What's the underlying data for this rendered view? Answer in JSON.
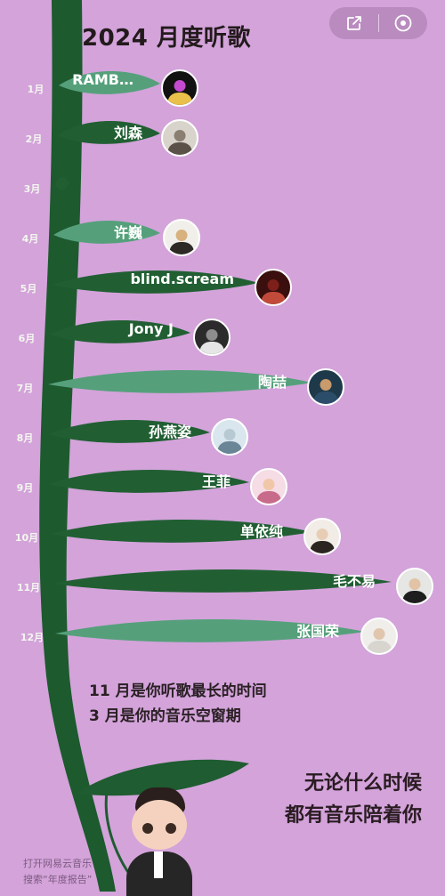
{
  "page": {
    "title": "2024 月度听歌",
    "share_icon": "share-icon",
    "record_icon": "record-icon"
  },
  "timeline": [
    {
      "month": "1月",
      "artist": "RAMB…",
      "avatar_colors": [
        "#111111",
        "#c44ad0",
        "#e9c04a"
      ]
    },
    {
      "month": "2月",
      "artist": "刘森",
      "avatar_colors": [
        "#d8d4cc",
        "#8a7f70",
        "#5b5148"
      ]
    },
    {
      "month": "3月",
      "artist": "",
      "avatar_colors": []
    },
    {
      "month": "4月",
      "artist": "许巍",
      "avatar_colors": [
        "#f1efe9",
        "#d7b27e",
        "#2d2a26"
      ]
    },
    {
      "month": "5月",
      "artist": "blind.scream",
      "avatar_colors": [
        "#3a0f0e",
        "#7d1f1a",
        "#c24a3a"
      ]
    },
    {
      "month": "6月",
      "artist": "Jony J",
      "avatar_colors": [
        "#2b2b2b",
        "#8d8d8d",
        "#e6e6e6"
      ]
    },
    {
      "month": "7月",
      "artist": "陶喆",
      "avatar_colors": [
        "#1e3a4a",
        "#c99a6b",
        "#2c4d6a"
      ]
    },
    {
      "month": "8月",
      "artist": "孙燕姿",
      "avatar_colors": [
        "#d9e6ee",
        "#b7c9d2",
        "#6a8596"
      ]
    },
    {
      "month": "9月",
      "artist": "王菲",
      "avatar_colors": [
        "#f5dce5",
        "#f0c7a8",
        "#c86b8a"
      ]
    },
    {
      "month": "10月",
      "artist": "单依纯",
      "avatar_colors": [
        "#f1ece6",
        "#e8cdb5",
        "#2c2420"
      ]
    },
    {
      "month": "11月",
      "artist": "毛不易",
      "avatar_colors": [
        "#e6e6e4",
        "#e2c3a6",
        "#1e1e1e"
      ]
    },
    {
      "month": "12月",
      "artist": "张国荣",
      "avatar_colors": [
        "#efeeeb",
        "#e1c6ae",
        "#d8d5cf"
      ]
    }
  ],
  "summary": {
    "longest": "11 月是你听歌最长的时间",
    "gap": "3 月是你的音乐空窗期"
  },
  "closing": {
    "line1": "无论什么时候",
    "line2": "都有音乐陪着你"
  },
  "footer": {
    "line1": "打开网易云音乐",
    "line2": "搜索“年度报告”"
  },
  "colors": {
    "background": "#d3a3da",
    "stem": "#1d5a2e",
    "leaf_dark": "#215f33",
    "leaf_light": "#55a07b"
  }
}
